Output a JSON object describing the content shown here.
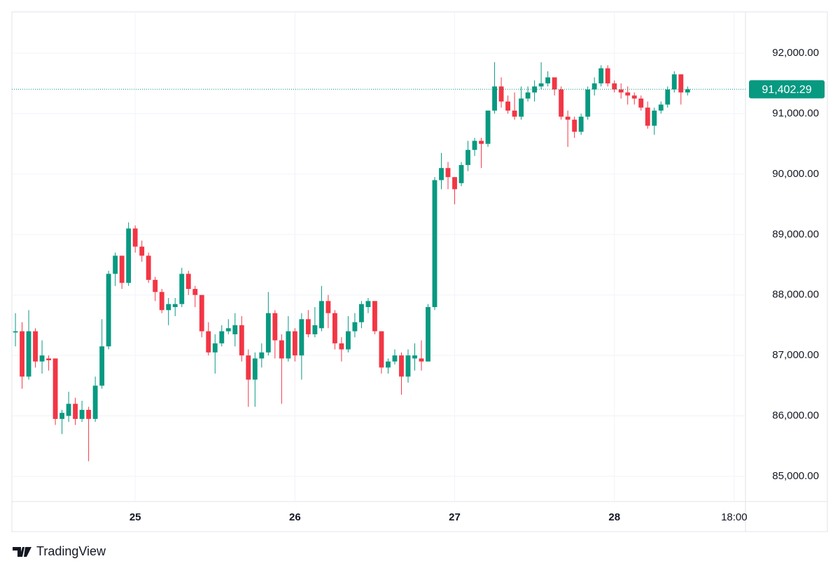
{
  "chart_data": {
    "type": "candlestick",
    "brand": "TradingView",
    "up_color": "#089981",
    "down_color": "#f23645",
    "x": [
      6,
      7,
      8,
      9,
      10,
      11,
      12,
      13,
      14,
      15,
      16,
      17,
      18,
      19,
      20,
      21,
      22,
      23,
      24,
      25,
      26,
      27,
      28,
      29,
      30,
      31,
      32,
      33,
      34,
      35,
      36,
      37,
      38,
      39,
      40,
      41,
      42,
      43,
      44,
      45,
      46,
      47,
      48,
      49,
      50,
      51,
      52,
      53,
      54,
      55,
      56,
      57,
      58,
      59,
      60,
      61,
      62,
      63,
      64,
      65,
      66,
      67,
      68,
      69,
      70,
      71,
      72,
      73,
      74,
      75,
      76,
      77,
      78,
      79,
      80,
      81,
      82,
      83,
      84,
      85,
      86,
      87,
      88,
      89,
      90,
      91,
      92,
      93,
      94,
      95,
      96,
      97,
      98,
      99,
      100,
      101,
      102,
      103,
      104,
      105,
      106,
      107
    ],
    "open": [
      87380,
      87400,
      86650,
      87400,
      86900,
      86950,
      86950,
      85950,
      86000,
      86200,
      85950,
      86100,
      85950,
      86500,
      87150,
      88350,
      88650,
      88200,
      89100,
      88800,
      88650,
      88250,
      88050,
      87750,
      87800,
      87850,
      88350,
      88100,
      88000,
      87400,
      87050,
      87200,
      87400,
      87350,
      87500,
      87000,
      86600,
      86950,
      87050,
      87700,
      87250,
      86950,
      87400,
      87000,
      87600,
      87350,
      87450,
      87900,
      87700,
      87200,
      87100,
      87400,
      87550,
      87800,
      87900,
      87400,
      86800,
      86900,
      87000,
      86650,
      86950,
      86950,
      86900,
      87800,
      89900,
      90100,
      89950,
      89850,
      90150,
      90400,
      90550,
      90500,
      91050,
      91450,
      91200,
      91050,
      90950,
      91250,
      91350,
      91450,
      91500,
      91600,
      91400,
      90950,
      90900,
      90700,
      90950,
      91400,
      91500,
      91750,
      91500,
      91400,
      91350,
      91300,
      91250,
      91100,
      90800,
      91050,
      91150,
      91400,
      91650,
      91350
    ],
    "high": [
      87700,
      87550,
      87750,
      87450,
      87250,
      87000,
      86950,
      86100,
      86400,
      86300,
      86250,
      86150,
      86650,
      87600,
      88400,
      88700,
      88650,
      89200,
      89150,
      88900,
      88700,
      88300,
      88100,
      87950,
      87950,
      88450,
      88400,
      88150,
      88000,
      87550,
      87350,
      87500,
      87600,
      87700,
      87650,
      87100,
      87050,
      87200,
      88050,
      87750,
      87350,
      87650,
      87450,
      87700,
      87750,
      87800,
      88150,
      88000,
      87750,
      87300,
      87650,
      87700,
      87900,
      87950,
      87900,
      87400,
      86950,
      87100,
      87050,
      87100,
      87200,
      87250,
      87850,
      89950,
      90350,
      90200,
      89950,
      90200,
      90550,
      90600,
      90600,
      91050,
      91850,
      91600,
      91300,
      91350,
      91450,
      91450,
      91550,
      91850,
      91700,
      91600,
      91450,
      91050,
      90950,
      91000,
      91450,
      91600,
      91800,
      91800,
      91550,
      91500,
      91450,
      91350,
      91300,
      91200,
      91100,
      91200,
      91450,
      91700,
      91650,
      91450
    ],
    "low": [
      87150,
      86450,
      86600,
      86800,
      86700,
      86750,
      85850,
      85700,
      85900,
      85850,
      85900,
      85250,
      85900,
      86450,
      87100,
      88150,
      88100,
      88150,
      88700,
      88550,
      88200,
      87900,
      87700,
      87500,
      87650,
      87800,
      88000,
      87800,
      87300,
      87000,
      86700,
      87150,
      87350,
      87150,
      86900,
      86150,
      86150,
      86800,
      87000,
      86950,
      86200,
      86900,
      86900,
      86600,
      87300,
      87300,
      87400,
      87450,
      87100,
      86900,
      87050,
      87300,
      87450,
      87700,
      87350,
      86700,
      86700,
      86850,
      86350,
      86550,
      86750,
      86750,
      86900,
      87750,
      89750,
      89750,
      89500,
      89800,
      90050,
      90300,
      90100,
      90450,
      91000,
      91100,
      91000,
      90900,
      90900,
      91200,
      91200,
      91400,
      91450,
      91300,
      90900,
      90450,
      90600,
      90650,
      90900,
      91300,
      91450,
      91450,
      91350,
      91250,
      91150,
      91150,
      91050,
      90750,
      90650,
      91000,
      91100,
      91350,
      91150,
      91300
    ],
    "close": [
      87400,
      86650,
      87400,
      86900,
      87000,
      86920,
      85950,
      86050,
      86200,
      85950,
      86100,
      85950,
      86500,
      87150,
      88350,
      88650,
      88200,
      89100,
      88800,
      88650,
      88250,
      88050,
      87750,
      87850,
      87850,
      88350,
      88100,
      88000,
      87400,
      87050,
      87200,
      87400,
      87450,
      87500,
      87000,
      86600,
      86950,
      87050,
      87700,
      87250,
      86950,
      87400,
      87000,
      87600,
      87350,
      87500,
      87900,
      87700,
      87200,
      87100,
      87400,
      87550,
      87850,
      87900,
      87400,
      86800,
      86900,
      87000,
      86650,
      87000,
      87000,
      86900,
      87800,
      89900,
      90100,
      89950,
      89750,
      90150,
      90400,
      90550,
      90500,
      91050,
      91450,
      91200,
      91050,
      90950,
      91250,
      91350,
      91450,
      91500,
      91600,
      91400,
      90950,
      90900,
      90700,
      90950,
      91400,
      91500,
      91750,
      91500,
      91400,
      91350,
      91300,
      91250,
      91100,
      90800,
      91050,
      91150,
      91400,
      91650,
      91350,
      91402.29
    ],
    "last_price": {
      "value": 91402.29,
      "label": "91,402.29"
    },
    "xlim": [
      5.47,
      115.7
    ],
    "xticks": [
      {
        "value": 24,
        "label": "25"
      },
      {
        "value": 48,
        "label": "26"
      },
      {
        "value": 72,
        "label": "27"
      },
      {
        "value": 96,
        "label": "28"
      },
      {
        "value": 114,
        "label": "18:00"
      }
    ],
    "ylim": [
      84583,
      92683
    ],
    "yticks": [
      {
        "value": 85000,
        "label": "85,000.00"
      },
      {
        "value": 86000,
        "label": "86,000.00"
      },
      {
        "value": 87000,
        "label": "87,000.00"
      },
      {
        "value": 88000,
        "label": "88,000.00"
      },
      {
        "value": 89000,
        "label": "89,000.00"
      },
      {
        "value": 90000,
        "label": "90,000.00"
      },
      {
        "value": 91000,
        "label": "91,000.00"
      },
      {
        "value": 92000,
        "label": "92,000.00"
      }
    ],
    "grid": true
  }
}
